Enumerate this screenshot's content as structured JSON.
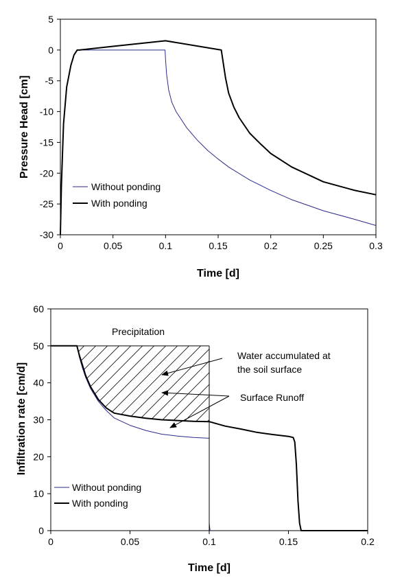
{
  "chart_data": [
    {
      "type": "line",
      "xlabel": "Time [d]",
      "ylabel": "Pressure Head [cm]",
      "xlim": [
        0,
        0.3
      ],
      "ylim": [
        -30,
        5
      ],
      "xticks": [
        "0",
        "0.05",
        "0.1",
        "0.15",
        "0.2",
        "0.25",
        "0.3"
      ],
      "yticks": [
        "5",
        "0",
        "-5",
        "-10",
        "-15",
        "-20",
        "-25",
        "-30"
      ],
      "grid": false,
      "legend_position": "lower-left",
      "series": [
        {
          "name": "Without ponding",
          "color": "#2a2a8a",
          "x": [
            0,
            0.001,
            0.003,
            0.006,
            0.01,
            0.013,
            0.016,
            0.02,
            0.05,
            0.0995,
            0.1,
            0.101,
            0.103,
            0.106,
            0.11,
            0.12,
            0.13,
            0.14,
            0.15,
            0.16,
            0.18,
            0.2,
            0.22,
            0.25,
            0.28,
            0.3
          ],
          "y": [
            -30,
            -22,
            -12,
            -6,
            -2.5,
            -0.8,
            0,
            0,
            0,
            0,
            -1.5,
            -4,
            -6.5,
            -8.5,
            -10,
            -12.6,
            -14.6,
            -16.3,
            -17.7,
            -19,
            -21.1,
            -22.8,
            -24.3,
            -26.1,
            -27.5,
            -28.5
          ]
        },
        {
          "name": "With ponding",
          "color": "#000000",
          "x": [
            0,
            0.001,
            0.003,
            0.006,
            0.01,
            0.013,
            0.016,
            0.018,
            0.05,
            0.1,
            0.153,
            0.155,
            0.157,
            0.16,
            0.165,
            0.17,
            0.18,
            0.19,
            0.2,
            0.22,
            0.25,
            0.28,
            0.3
          ],
          "y": [
            -30,
            -22,
            -12,
            -6,
            -2.5,
            -0.8,
            0,
            0,
            0.6,
            1.5,
            0,
            -2.3,
            -4.5,
            -7,
            -9.3,
            -11,
            -13.5,
            -15.2,
            -16.8,
            -19,
            -21.4,
            -22.8,
            -23.5
          ]
        }
      ]
    },
    {
      "type": "line",
      "xlabel": "Time [d]",
      "ylabel": "Infiltration rate [cm/d]",
      "xlim": [
        0,
        0.2
      ],
      "ylim": [
        0,
        60
      ],
      "xticks": [
        "0",
        "0.05",
        "0.1",
        "0.15",
        "0.2"
      ],
      "yticks": [
        "60",
        "50",
        "40",
        "30",
        "20",
        "10",
        "0"
      ],
      "grid": false,
      "legend_position": "lower-left",
      "annotations": {
        "precipitation": "Precipitation",
        "accumulated_line1": "Water accumulated at",
        "accumulated_line2": "the soil surface",
        "runoff": "Surface Runoff"
      },
      "precipitation_rate": 50,
      "precipitation_end": 0.1,
      "series": [
        {
          "name": "Without ponding",
          "color": "#2a2a8a",
          "x": [
            0,
            0.0165,
            0.018,
            0.02,
            0.022,
            0.025,
            0.03,
            0.035,
            0.04,
            0.05,
            0.06,
            0.07,
            0.08,
            0.09,
            0.0998,
            0.1,
            0.1,
            0.1005
          ],
          "y": [
            50,
            50,
            47,
            44,
            41.5,
            38.5,
            35,
            32.5,
            30.5,
            28.5,
            27.1,
            26.1,
            25.6,
            25.2,
            25,
            25,
            2,
            0
          ]
        },
        {
          "name": "With ponding",
          "color": "#000000",
          "x": [
            0,
            0.0165,
            0.018,
            0.02,
            0.022,
            0.025,
            0.03,
            0.035,
            0.04,
            0.05,
            0.06,
            0.07,
            0.08,
            0.09,
            0.1,
            0.11,
            0.12,
            0.13,
            0.14,
            0.15,
            0.153,
            0.154,
            0.155,
            0.156,
            0.157,
            0.158,
            0.2
          ],
          "y": [
            50,
            50,
            47.5,
            44.8,
            42,
            39,
            35.5,
            33.2,
            31.8,
            31,
            30.4,
            30,
            29.8,
            29.6,
            29.5,
            28.3,
            27.5,
            26.6,
            26,
            25.5,
            25.2,
            24,
            18,
            8,
            2,
            0,
            0
          ]
        }
      ]
    }
  ]
}
